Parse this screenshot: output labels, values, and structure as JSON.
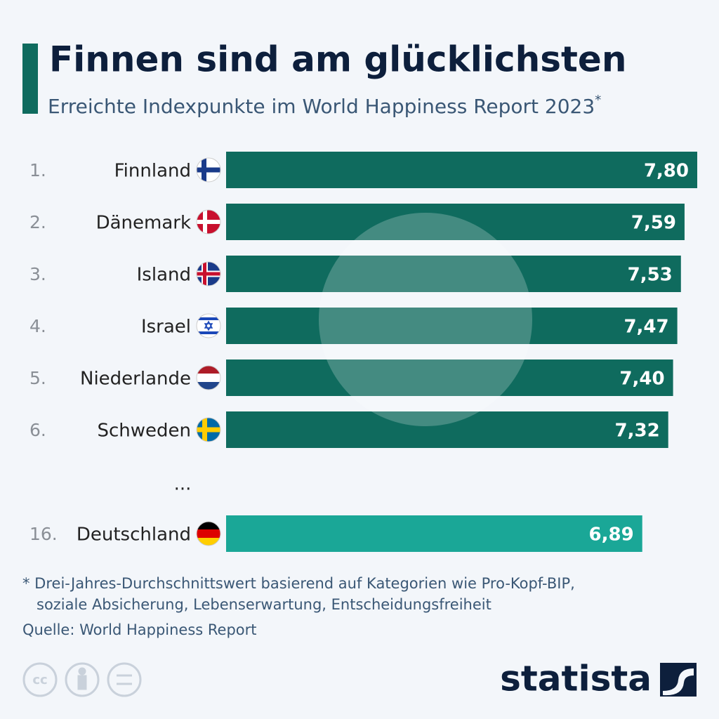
{
  "chart_data": {
    "type": "bar",
    "title": "Finnen sind am glücklichsten",
    "subtitle": "Erreichte Indexpunkte im World Happiness Report 2023",
    "subtitle_note": "*",
    "ranks": [
      "1.",
      "2.",
      "3.",
      "4.",
      "5.",
      "6.",
      "16."
    ],
    "categories": [
      "Finnland",
      "Dänemark",
      "Island",
      "Israel",
      "Niederlande",
      "Schweden",
      "Deutschland"
    ],
    "values": [
      7.8,
      7.59,
      7.53,
      7.47,
      7.4,
      7.32,
      6.89
    ],
    "value_labels": [
      "7,80",
      "7,59",
      "7,53",
      "7,47",
      "7,40",
      "7,32",
      "6,89"
    ],
    "colors": [
      "#0f6b5e",
      "#0f6b5e",
      "#0f6b5e",
      "#0f6b5e",
      "#0f6b5e",
      "#0f6b5e",
      "#1aa797"
    ],
    "gap_label": "...",
    "footnote": [
      "* Drei-Jahres-Durchschnittswert basierend auf Kategorien wie Pro-Kopf-BIP,",
      "soziale Absicherung, Lebenserwartung, Entscheidungsfreiheit"
    ],
    "source": "Quelle: World Happiness Report",
    "license": "cc",
    "brand": "statista"
  }
}
